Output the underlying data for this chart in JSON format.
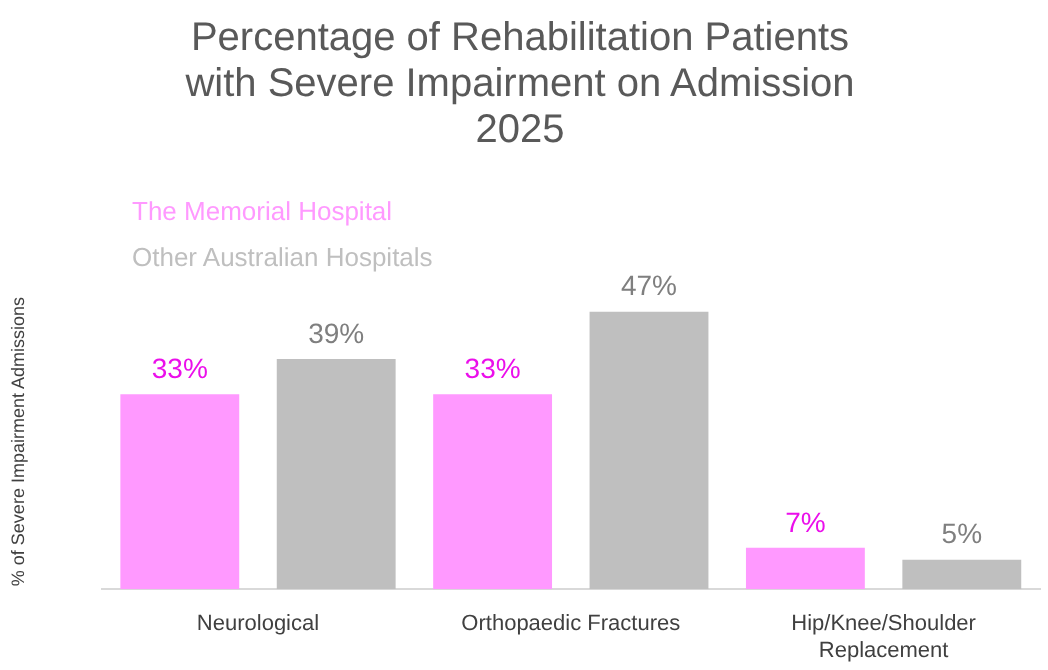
{
  "chart_data": {
    "type": "bar",
    "title": "Percentage of Rehabilitation Patients with Severe Impairment on Admission 2025",
    "ylabel": "% of Severe Impairment Admissions",
    "categories": [
      "Neurological",
      "Orthopaedic Fractures",
      "Hip/Knee/Shoulder Replacement"
    ],
    "series": [
      {
        "name": "The Memorial Hospital",
        "color": "#ff99ff",
        "values": [
          33,
          33,
          7
        ],
        "value_labels": [
          "33%",
          "33%",
          "7%"
        ]
      },
      {
        "name": "Other Australian Hospitals",
        "color": "#bfbfbf",
        "values": [
          39,
          47,
          5
        ],
        "value_labels": [
          "39%",
          "47%",
          "5%"
        ]
      }
    ],
    "legend": "top left",
    "grid": false
  }
}
